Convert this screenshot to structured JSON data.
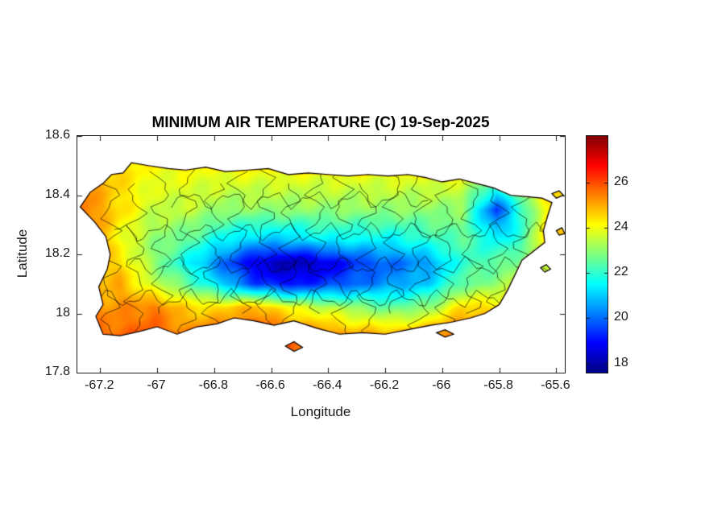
{
  "figure": {
    "background_color": "#ffffff",
    "text_color": "#1a1a1a"
  },
  "chart_data": {
    "type": "heatmap",
    "title": "MINIMUM AIR TEMPERATURE (C) 19-Sep-2025",
    "xlabel": "Longitude",
    "ylabel": "Latitude",
    "xlim": [
      -67.28,
      -65.57
    ],
    "ylim": [
      17.8,
      18.6
    ],
    "grid_on": false,
    "xticks": {
      "values": [
        -67.2,
        -67,
        -66.8,
        -66.6,
        -66.4,
        -66.2,
        -66,
        -65.8,
        -65.6
      ],
      "labels": [
        "-67.2",
        "-67",
        "-66.8",
        "-66.6",
        "-66.4",
        "-66.2",
        "-66",
        "-65.8",
        "-65.6"
      ]
    },
    "yticks": {
      "values": [
        17.8,
        18,
        18.2,
        18.4,
        18.6
      ],
      "labels": [
        "17.8",
        "18",
        "18.2",
        "18.4",
        "18.6"
      ]
    },
    "colorbar": {
      "position": "right",
      "min": 17.6,
      "max": 28.05,
      "ticks": [
        18,
        20,
        22,
        24,
        26
      ],
      "tick_labels": [
        "18",
        "20",
        "22",
        "24",
        "26"
      ],
      "colormap": "jet",
      "stops": [
        {
          "pos": 0,
          "color": [
            0,
            0,
            131
          ]
        },
        {
          "pos": 0.125,
          "color": [
            0,
            0,
            255
          ]
        },
        {
          "pos": 0.375,
          "color": [
            0,
            255,
            255
          ]
        },
        {
          "pos": 0.625,
          "color": [
            255,
            255,
            0
          ]
        },
        {
          "pos": 0.875,
          "color": [
            255,
            0,
            0
          ]
        },
        {
          "pos": 1,
          "color": [
            128,
            0,
            0
          ]
        }
      ]
    },
    "temperature_grid": {
      "units": "C",
      "lons": [
        -67.25,
        -67.13,
        -67.01,
        -66.89,
        -66.77,
        -66.65,
        -66.53,
        -66.41,
        -66.29,
        -66.17,
        -66.05,
        -65.93,
        -65.81,
        -65.72,
        -65.64,
        -65.57
      ],
      "lats": [
        17.92,
        18.02,
        18.1,
        18.17,
        18.25,
        18.35,
        18.48
      ],
      "temps": [
        [
          25.5,
          25.8,
          25.8,
          25.5,
          25.8,
          26.2,
          25.8,
          25.5,
          25.2,
          25.2,
          25.5,
          25.8,
          25.5,
          25.2,
          25.0,
          25.0
        ],
        [
          25.2,
          25.2,
          25.5,
          24.5,
          24.5,
          25.0,
          24.0,
          23.5,
          23.0,
          22.5,
          23.0,
          24.5,
          24.5,
          24.5,
          24.5,
          24.5
        ],
        [
          24.5,
          25.0,
          23.5,
          22.5,
          21.0,
          19.5,
          19.0,
          19.5,
          20.0,
          20.5,
          21.0,
          22.5,
          23.0,
          23.5,
          24.0,
          24.5
        ],
        [
          25.0,
          24.5,
          23.0,
          21.5,
          20.0,
          18.5,
          18.0,
          18.5,
          19.5,
          20.0,
          20.5,
          22.0,
          22.5,
          23.0,
          23.5,
          24.5
        ],
        [
          25.5,
          24.0,
          23.0,
          22.5,
          21.5,
          21.0,
          21.0,
          21.5,
          21.5,
          21.5,
          22.0,
          22.5,
          21.5,
          22.0,
          24.5,
          25.0
        ],
        [
          25.5,
          24.5,
          23.5,
          23.5,
          23.0,
          23.0,
          23.0,
          23.0,
          23.0,
          23.0,
          23.0,
          23.0,
          19.5,
          22.0,
          24.0,
          24.5
        ],
        [
          25.0,
          24.5,
          24.0,
          24.0,
          24.0,
          24.0,
          24.0,
          24.0,
          24.0,
          24.0,
          24.0,
          24.0,
          23.5,
          24.0,
          24.5,
          25.0
        ]
      ]
    },
    "island_outline": [
      [
        -67.27,
        18.36
      ],
      [
        -67.235,
        18.41
      ],
      [
        -67.19,
        18.44
      ],
      [
        -67.16,
        18.47
      ],
      [
        -67.12,
        18.475
      ],
      [
        -67.09,
        18.51
      ],
      [
        -67.03,
        18.5
      ],
      [
        -66.96,
        18.49
      ],
      [
        -66.9,
        18.485
      ],
      [
        -66.83,
        18.495
      ],
      [
        -66.76,
        18.48
      ],
      [
        -66.68,
        18.485
      ],
      [
        -66.61,
        18.49
      ],
      [
        -66.54,
        18.47
      ],
      [
        -66.47,
        18.475
      ],
      [
        -66.4,
        18.47
      ],
      [
        -66.33,
        18.465
      ],
      [
        -66.26,
        18.47
      ],
      [
        -66.19,
        18.465
      ],
      [
        -66.12,
        18.47
      ],
      [
        -66.06,
        18.46
      ],
      [
        -66.0,
        18.445
      ],
      [
        -65.94,
        18.455
      ],
      [
        -65.88,
        18.44
      ],
      [
        -65.82,
        18.425
      ],
      [
        -65.76,
        18.4
      ],
      [
        -65.7,
        18.395
      ],
      [
        -65.65,
        18.39
      ],
      [
        -65.615,
        18.375
      ],
      [
        -65.63,
        18.33
      ],
      [
        -65.645,
        18.28
      ],
      [
        -65.64,
        18.24
      ],
      [
        -65.68,
        18.21
      ],
      [
        -65.72,
        18.18
      ],
      [
        -65.745,
        18.13
      ],
      [
        -65.77,
        18.08
      ],
      [
        -65.8,
        18.03
      ],
      [
        -65.85,
        18.0
      ],
      [
        -65.9,
        17.985
      ],
      [
        -65.97,
        17.97
      ],
      [
        -66.04,
        17.96
      ],
      [
        -66.12,
        17.945
      ],
      [
        -66.2,
        17.93
      ],
      [
        -66.28,
        17.935
      ],
      [
        -66.36,
        17.93
      ],
      [
        -66.44,
        17.95
      ],
      [
        -66.52,
        17.975
      ],
      [
        -66.59,
        17.96
      ],
      [
        -66.66,
        17.975
      ],
      [
        -66.73,
        17.985
      ],
      [
        -66.79,
        17.965
      ],
      [
        -66.86,
        17.955
      ],
      [
        -66.93,
        17.93
      ],
      [
        -67.0,
        17.955
      ],
      [
        -67.06,
        17.94
      ],
      [
        -67.13,
        17.925
      ],
      [
        -67.19,
        17.93
      ],
      [
        -67.215,
        17.99
      ],
      [
        -67.19,
        18.03
      ],
      [
        -67.205,
        18.09
      ],
      [
        -67.175,
        18.15
      ],
      [
        -67.165,
        18.2
      ],
      [
        -67.18,
        18.26
      ],
      [
        -67.22,
        18.31
      ]
    ],
    "islets": [
      [
        [
          -66.55,
          17.89
        ],
        [
          -66.52,
          17.905
        ],
        [
          -66.49,
          17.885
        ],
        [
          -66.52,
          17.872
        ]
      ],
      [
        [
          -66.02,
          17.935
        ],
        [
          -65.99,
          17.945
        ],
        [
          -65.96,
          17.93
        ],
        [
          -65.99,
          17.92
        ]
      ],
      [
        [
          -65.655,
          18.155
        ],
        [
          -65.635,
          18.165
        ],
        [
          -65.62,
          18.15
        ],
        [
          -65.64,
          18.14
        ]
      ],
      [
        [
          -65.615,
          18.405
        ],
        [
          -65.59,
          18.415
        ],
        [
          -65.575,
          18.4
        ],
        [
          -65.6,
          18.39
        ]
      ],
      [
        [
          -65.6,
          18.28
        ],
        [
          -65.58,
          18.29
        ],
        [
          -65.57,
          18.27
        ],
        [
          -65.59,
          18.265
        ]
      ]
    ]
  }
}
